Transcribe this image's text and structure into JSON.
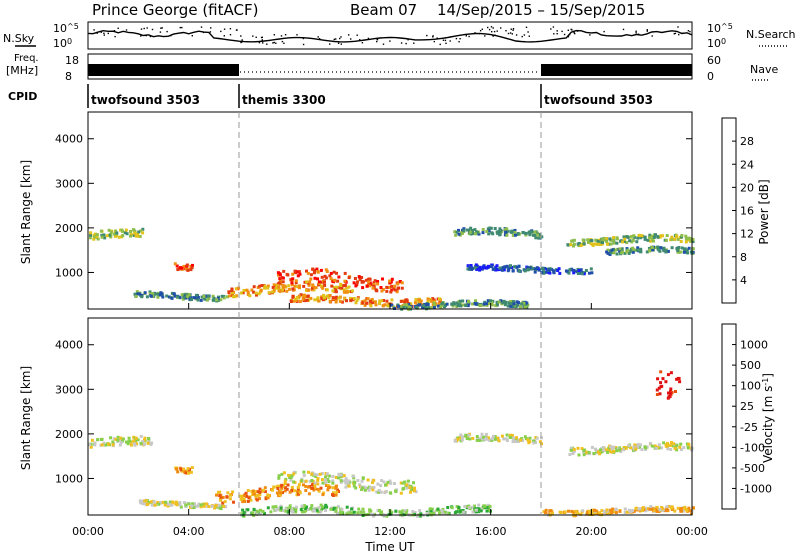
{
  "header": {
    "station": "Prince George (fitACF)",
    "beam": "Beam 07",
    "dates": "14/Sep/2015 – 15/Sep/2015"
  },
  "top_panels": {
    "nsky_label": "N.Sky",
    "nsky_ticks": [
      "10^5",
      "10^0"
    ],
    "nsearch_label": "N.Search",
    "freq_label": "Freq.",
    "freq_unit": "[MHz]",
    "freq_ticks": [
      "18",
      "8"
    ],
    "nave_ticks": [
      "60",
      "0"
    ],
    "nave_label": "Nave",
    "cpid_label": "CPID",
    "cpid_segments": [
      {
        "name": "twofsound 3503",
        "start": 0,
        "end": 6
      },
      {
        "name": "themis 3300",
        "start": 6,
        "end": 18
      },
      {
        "name": "twofsound 3503",
        "start": 18,
        "end": 24
      }
    ]
  },
  "chart_data": [
    {
      "type": "heatmap",
      "title": "Power",
      "ylabel": "Slant Range [km]",
      "xlabel": "Time UT",
      "xlim": [
        0,
        24
      ],
      "ylim": [
        180,
        4600
      ],
      "y_ticks": [
        "1000",
        "2000",
        "3000",
        "4000"
      ],
      "x_ticks": [
        "00:00",
        "04:00",
        "08:00",
        "12:00",
        "16:00",
        "20:00",
        "00:00"
      ],
      "colorbar": {
        "label": "Power [dB]",
        "ticks": [
          "4",
          "8",
          "12",
          "16",
          "20",
          "24",
          "28"
        ],
        "colors": [
          "#1a1aff",
          "#1f4fa8",
          "#3f8a70",
          "#8fbe4a",
          "#e0c21a",
          "#f08f10",
          "#e43a12",
          "#ff0000"
        ]
      },
      "bands": [
        {
          "t_start": 0.0,
          "t_end": 2.2,
          "range": 1850,
          "width": 180,
          "level": 3
        },
        {
          "t_start": 3.4,
          "t_end": 4.1,
          "range": 1150,
          "width": 160,
          "level": 6
        },
        {
          "t_start": 1.8,
          "t_end": 5.5,
          "range": 500,
          "width": 120,
          "level": 2
        },
        {
          "t_start": 5.5,
          "t_end": 10.5,
          "range": 650,
          "width": 200,
          "level": 5
        },
        {
          "t_start": 7.5,
          "t_end": 12.5,
          "range": 850,
          "width": 300,
          "level": 6
        },
        {
          "t_start": 8.0,
          "t_end": 14.0,
          "range": 400,
          "width": 160,
          "level": 5
        },
        {
          "t_start": 12.0,
          "t_end": 17.5,
          "range": 300,
          "width": 120,
          "level": 2
        },
        {
          "t_start": 14.5,
          "t_end": 18.0,
          "range": 1900,
          "width": 150,
          "level": 2
        },
        {
          "t_start": 19.0,
          "t_end": 24.0,
          "range": 1750,
          "width": 150,
          "level": 3
        },
        {
          "t_start": 20.5,
          "t_end": 24.0,
          "range": 1500,
          "width": 120,
          "level": 2
        },
        {
          "t_start": 15.0,
          "t_end": 20.0,
          "range": 1100,
          "width": 120,
          "level": 1
        }
      ]
    },
    {
      "type": "heatmap",
      "title": "Velocity",
      "ylabel": "Slant Range [km]",
      "xlabel": "Time UT",
      "xlim": [
        0,
        24
      ],
      "ylim": [
        180,
        4600
      ],
      "y_ticks": [
        "1000",
        "2000",
        "3000",
        "4000"
      ],
      "x_ticks": [
        "00:00",
        "04:00",
        "08:00",
        "12:00",
        "16:00",
        "20:00",
        "00:00"
      ],
      "colorbar": {
        "label": "Velocity [m s^-1]",
        "ticks": [
          "1000",
          "500",
          "100",
          "25",
          "-25",
          "-100",
          "-500",
          "-1000"
        ],
        "colors": [
          "#1a3fbf",
          "#3d7a6a",
          "#2aa836",
          "#88d04c",
          "#c8c8c8",
          "#f0c020",
          "#f08a10",
          "#e85010",
          "#e01010"
        ]
      },
      "bands": [
        {
          "t_start": 0.0,
          "t_end": 2.5,
          "range": 1800,
          "width": 200,
          "level": 4
        },
        {
          "t_start": 3.4,
          "t_end": 4.1,
          "range": 1250,
          "width": 160,
          "level": 6
        },
        {
          "t_start": 2.0,
          "t_end": 5.5,
          "range": 450,
          "width": 110,
          "level": 4
        },
        {
          "t_start": 5.0,
          "t_end": 10.0,
          "range": 700,
          "width": 250,
          "level": 6
        },
        {
          "t_start": 7.5,
          "t_end": 13.0,
          "range": 950,
          "width": 280,
          "level": 4
        },
        {
          "t_start": 6.0,
          "t_end": 16.0,
          "range": 300,
          "width": 160,
          "level": 3
        },
        {
          "t_start": 14.5,
          "t_end": 18.0,
          "range": 1900,
          "width": 150,
          "level": 4
        },
        {
          "t_start": 19.0,
          "t_end": 24.0,
          "range": 1700,
          "width": 160,
          "level": 4
        },
        {
          "t_start": 22.5,
          "t_end": 23.5,
          "range": 2900,
          "width": 600,
          "level": 8
        },
        {
          "t_start": 18.0,
          "t_end": 24.0,
          "range": 300,
          "width": 120,
          "level": 5
        }
      ]
    }
  ]
}
